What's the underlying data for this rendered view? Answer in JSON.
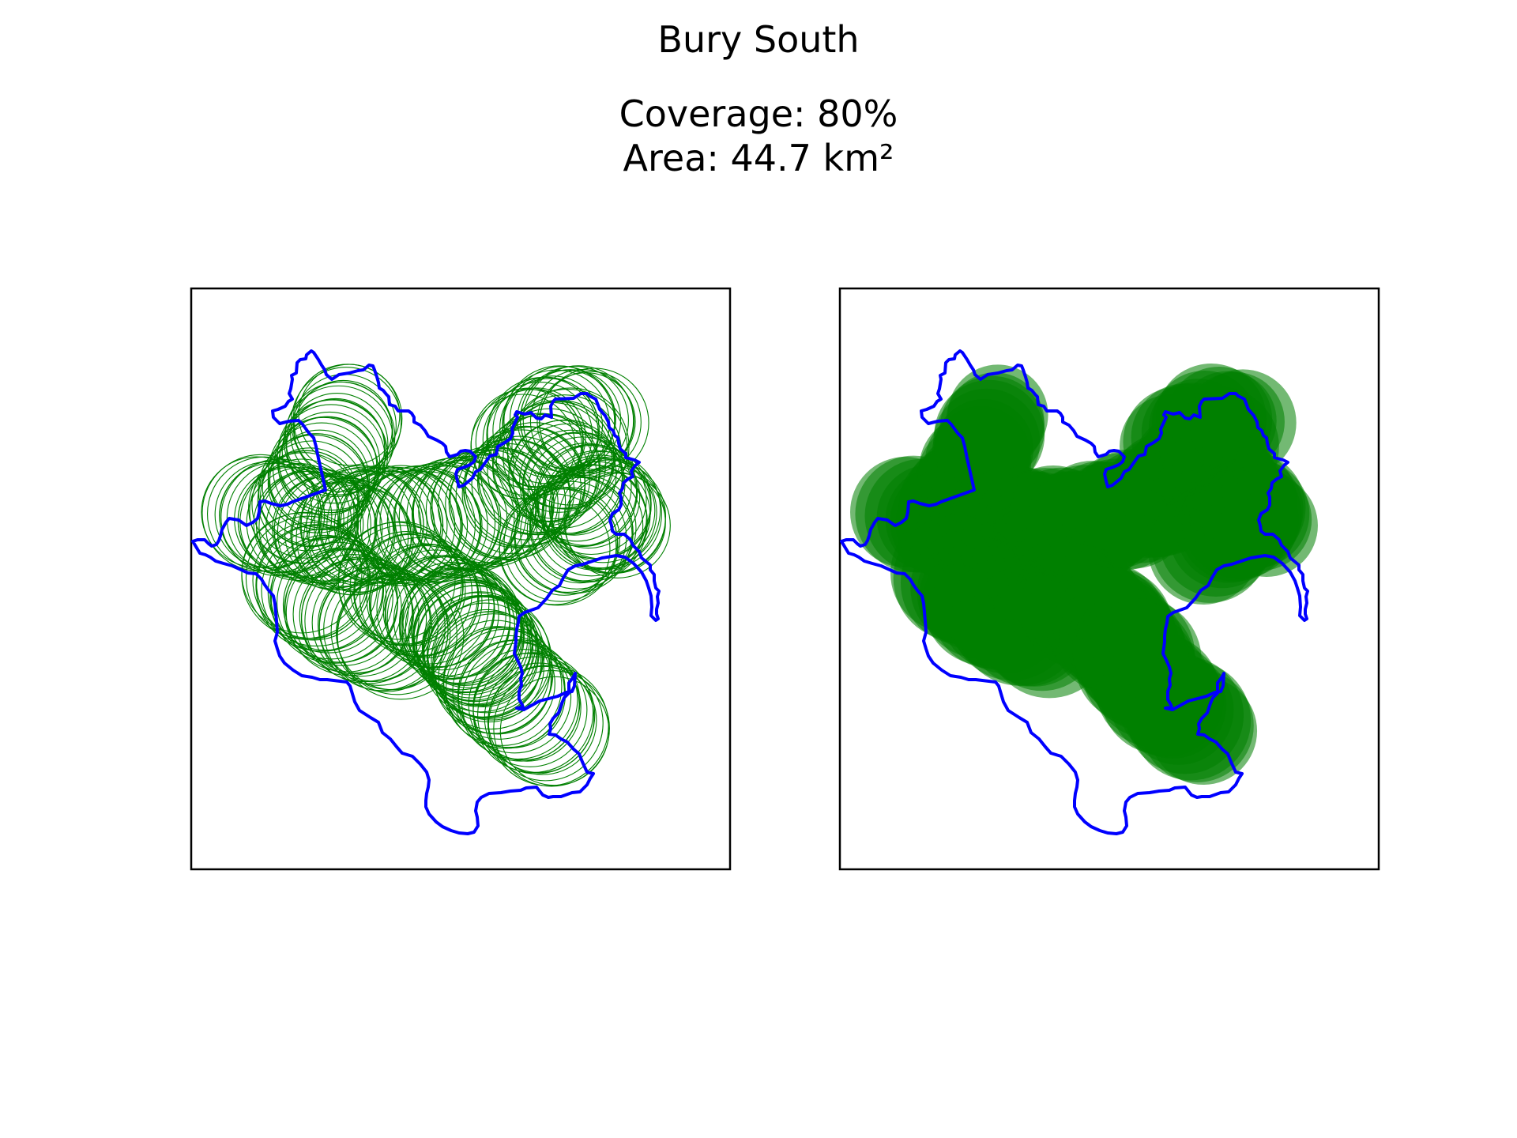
{
  "title": "Bury South",
  "stats": {
    "coverage": "Coverage: 80%",
    "area": "Area: 44.7 km²"
  },
  "colors": {
    "boundary": "#0000ff",
    "coverage": "#008000",
    "frame": "#000000",
    "background": "#ffffff"
  },
  "panels": [
    {
      "id": "left",
      "style": "outline-circles"
    },
    {
      "id": "right",
      "style": "filled-circles"
    }
  ]
}
